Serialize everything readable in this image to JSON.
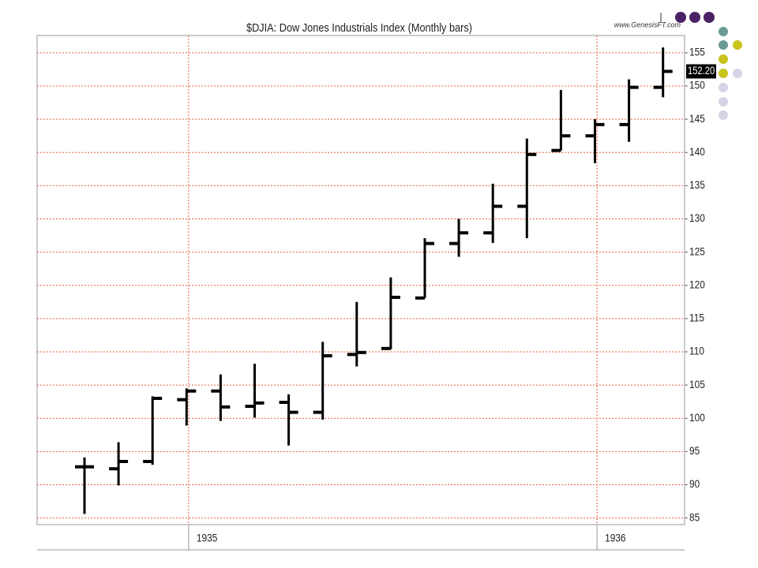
{
  "chart_data": {
    "type": "ohlc",
    "title": "$DJIA:  Dow Jones Industrials Index  (Monthly bars)",
    "source": "www.GenesisFT.com",
    "categories": [
      null,
      null,
      null,
      null,
      "1935",
      null,
      null,
      null,
      null,
      null,
      null,
      null,
      null,
      null,
      null,
      null,
      "1936",
      null
    ],
    "series": [
      {
        "name": "open",
        "values": [
          92.7,
          92.4,
          93.5,
          102.8,
          104.1,
          101.8,
          102.4,
          100.9,
          109.6,
          110.5,
          118.1,
          126.3,
          127.9,
          131.9,
          140.3,
          142.5,
          144.2,
          149.8
        ]
      },
      {
        "name": "high",
        "values": [
          94.1,
          96.4,
          103.3,
          104.5,
          106.6,
          108.2,
          103.6,
          111.5,
          117.5,
          121.2,
          127.1,
          130,
          135.3,
          142.1,
          149.4,
          145,
          151,
          155.8
        ]
      },
      {
        "name": "low",
        "values": [
          85.6,
          89.9,
          93,
          98.9,
          99.6,
          100.1,
          95.9,
          99.8,
          107.8,
          110.4,
          118.1,
          124.3,
          126.4,
          127.1,
          140.3,
          138.4,
          141.6,
          148.3
        ]
      },
      {
        "name": "close",
        "values": [
          92.7,
          93.5,
          103,
          104.1,
          101.7,
          102.3,
          100.9,
          109.4,
          109.9,
          118.2,
          126.3,
          127.9,
          131.9,
          139.7,
          142.5,
          144.2,
          149.8,
          152.2
        ]
      }
    ],
    "last_label": {
      "value": 152.2,
      "label": "152.20"
    },
    "color": "#000000",
    "grid_color": "#e8603c",
    "ylim": [
      84,
      157.6
    ],
    "yticks": [
      85,
      90,
      95,
      100,
      105,
      110,
      115,
      120,
      125,
      130,
      135,
      140,
      145,
      150,
      155
    ],
    "grid": true
  }
}
